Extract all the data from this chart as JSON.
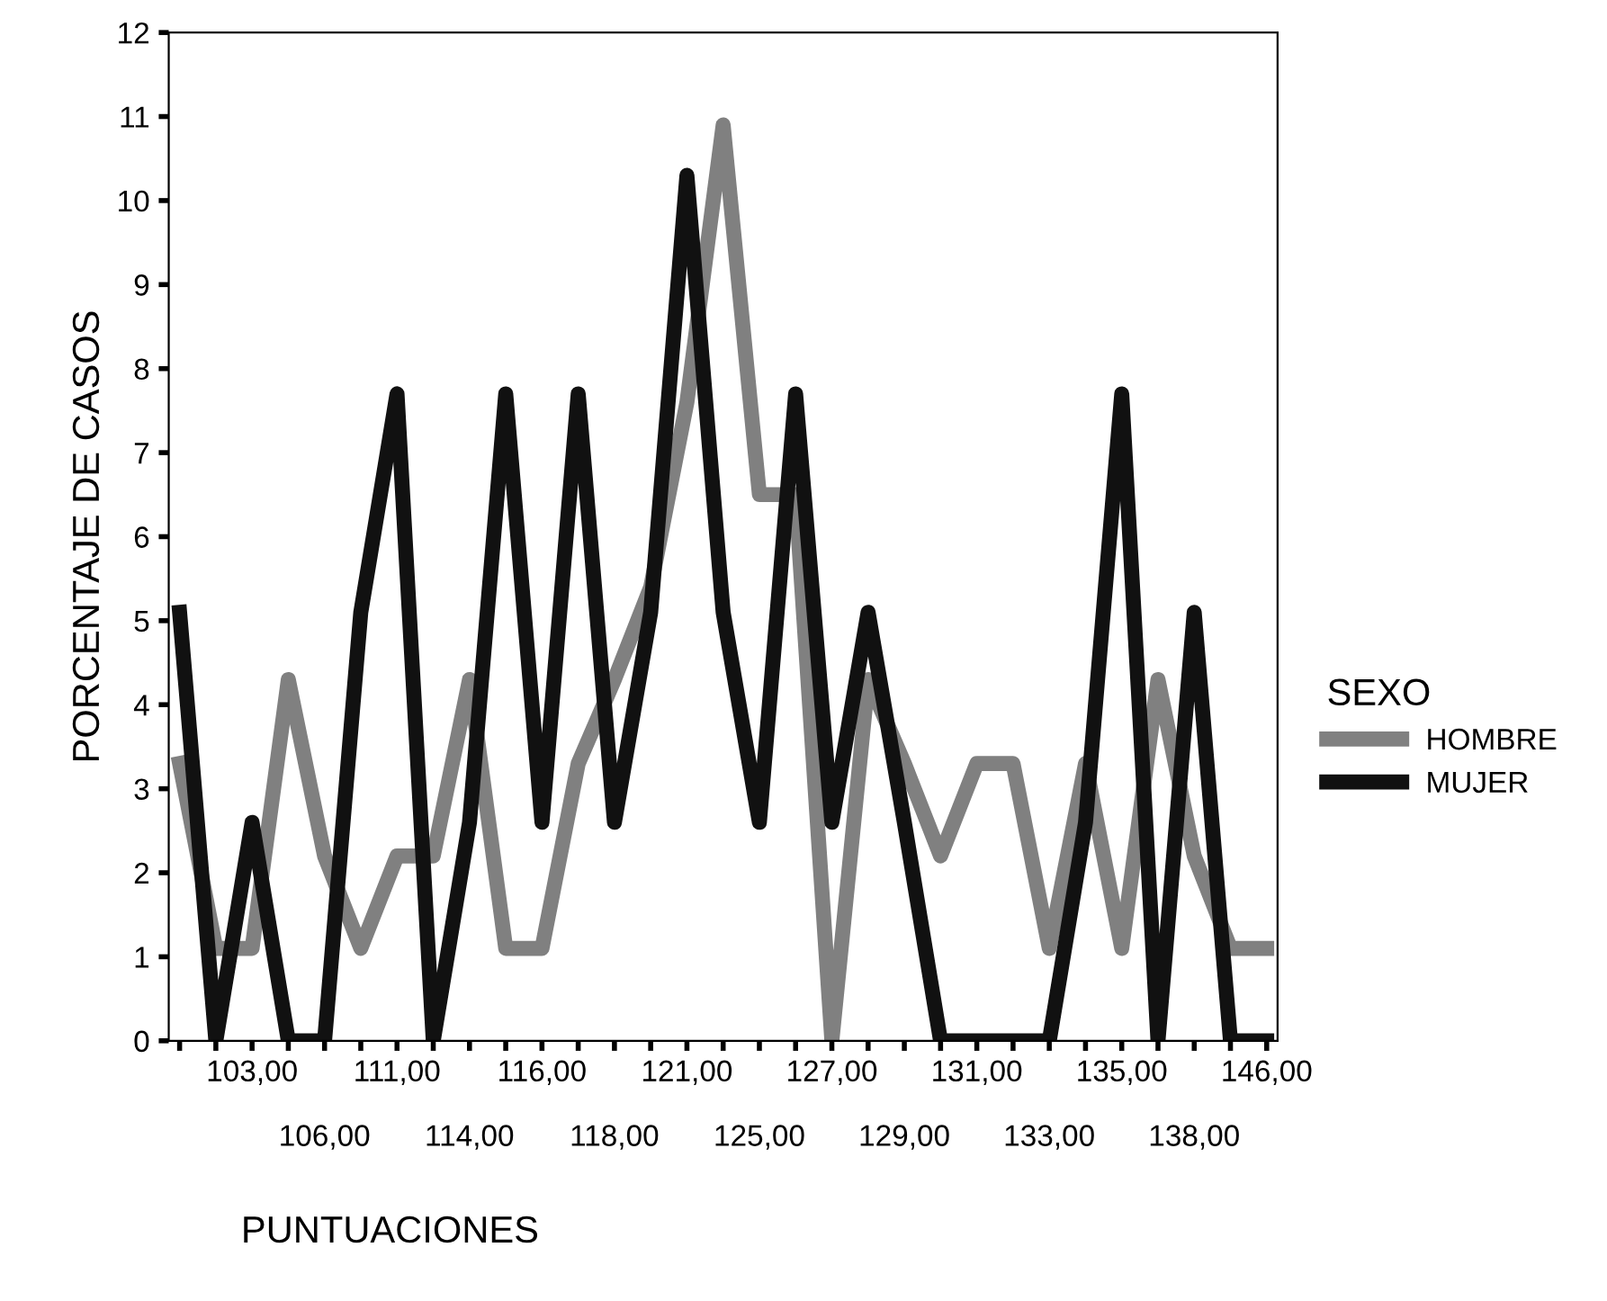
{
  "chart_data": {
    "type": "line",
    "xlabel": "PUNTUACIONES",
    "ylabel": "PORCENTAJE DE CASOS",
    "legend_title": "SEXO",
    "legend": "right",
    "categories": [
      null,
      null,
      "103,00",
      null,
      "106,00",
      null,
      "111,00",
      null,
      "114,00",
      null,
      "116,00",
      null,
      "118,00",
      null,
      "121,00",
      null,
      "125,00",
      null,
      "127,00",
      null,
      "129,00",
      null,
      "131,00",
      null,
      "133,00",
      null,
      "135,00",
      null,
      "138,00",
      null,
      "146,00"
    ],
    "series": [
      {
        "name": "HOMBRE",
        "color": "#808080",
        "values": [
          3.3,
          1.1,
          1.1,
          4.3,
          2.2,
          1.1,
          2.2,
          2.2,
          4.3,
          1.1,
          1.1,
          3.3,
          4.3,
          5.4,
          7.6,
          10.9,
          6.5,
          6.5,
          0,
          4.3,
          3.3,
          2.2,
          3.3,
          3.3,
          1.1,
          3.3,
          1.1,
          4.3,
          2.2,
          1.1,
          1.1
        ]
      },
      {
        "name": "MUJER",
        "color": "#111111",
        "values": [
          5.1,
          0,
          2.6,
          0,
          0,
          5.1,
          7.7,
          0,
          2.6,
          7.7,
          2.6,
          7.7,
          2.6,
          5.1,
          10.3,
          5.1,
          2.6,
          7.7,
          2.6,
          5.1,
          2.6,
          0,
          0,
          0,
          0,
          2.6,
          7.7,
          0,
          5.1,
          0,
          0
        ]
      }
    ],
    "ylim": [
      0,
      12
    ],
    "yticks": [
      0,
      1,
      2,
      3,
      4,
      5,
      6,
      7,
      8,
      9,
      10,
      11,
      12
    ],
    "grid": false,
    "marker": "none",
    "line_style": "solid"
  }
}
